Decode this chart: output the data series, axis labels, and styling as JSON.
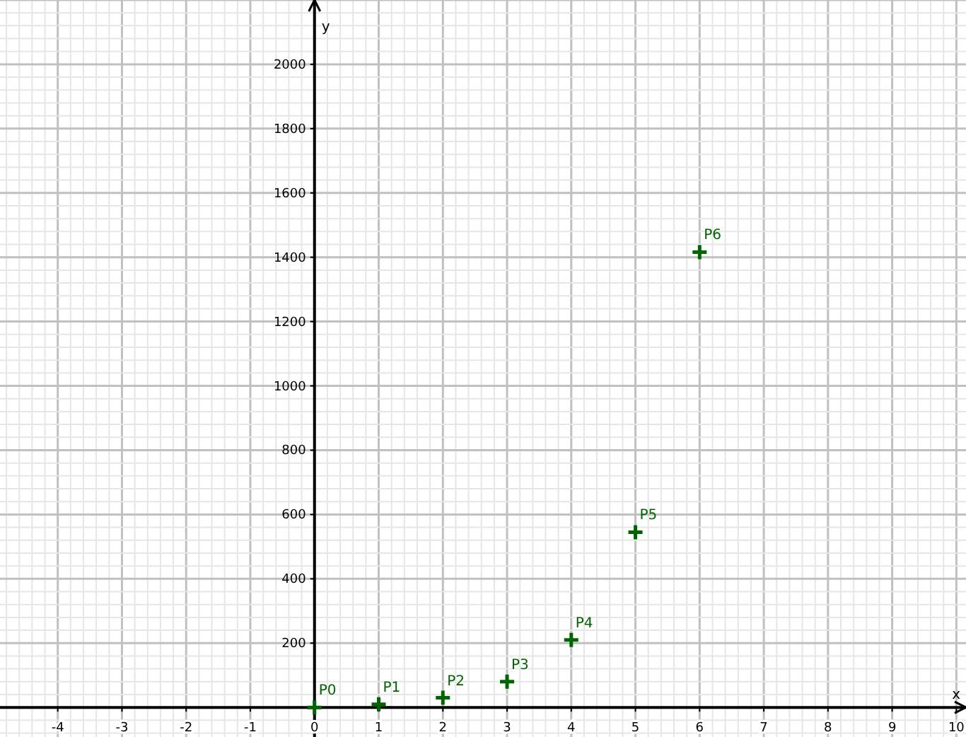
{
  "chart_data": {
    "type": "scatter",
    "xlabel": "x",
    "ylabel": "y",
    "x": [
      0,
      1,
      2,
      3,
      4,
      5,
      6
    ],
    "series": [
      {
        "color": "#006400",
        "values": [
          0,
          10,
          30,
          80,
          210,
          545,
          1416
        ]
      }
    ],
    "xlim": [
      -4.9,
      10.15
    ],
    "ylim": [
      -92,
      2200
    ],
    "xticks": [
      -4,
      -3,
      -2,
      -1,
      0,
      1,
      2,
      3,
      4,
      5,
      6,
      7,
      8,
      9,
      10
    ],
    "yticks": [
      200,
      400,
      600,
      800,
      1000,
      1200,
      1400,
      1600,
      1800,
      2000
    ],
    "grid": true,
    "marker": "cross",
    "annotations": [
      {
        "text": "P0",
        "x": 0,
        "y": 0
      },
      {
        "text": "P1",
        "x": 1,
        "y": 10
      },
      {
        "text": "P2",
        "x": 2,
        "y": 30
      },
      {
        "text": "P3",
        "x": 3,
        "y": 80
      },
      {
        "text": "P4",
        "x": 4,
        "y": 210
      },
      {
        "text": "P5",
        "x": 5,
        "y": 545
      },
      {
        "text": "P6",
        "x": 6,
        "y": 1416
      }
    ]
  }
}
